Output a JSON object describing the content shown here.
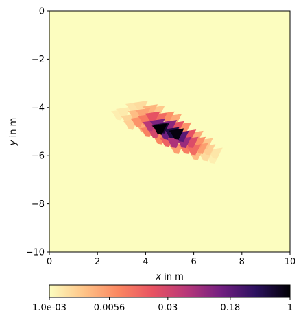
{
  "chart_data": {
    "type": "heatmap",
    "title": "",
    "xlabel": {
      "var": "x",
      "rest": " in m"
    },
    "ylabel": {
      "var": "y",
      "rest": " in m"
    },
    "xlim": [
      0,
      10
    ],
    "ylim": [
      -10,
      0
    ],
    "x_ticks": [
      {
        "v": 0,
        "label": "0"
      },
      {
        "v": 2,
        "label": "2"
      },
      {
        "v": 4,
        "label": "4"
      },
      {
        "v": 6,
        "label": "6"
      },
      {
        "v": 8,
        "label": "8"
      },
      {
        "v": 10,
        "label": "10"
      }
    ],
    "y_ticks": [
      {
        "v": 0,
        "label": "0"
      },
      {
        "v": -2,
        "label": "−2"
      },
      {
        "v": -4,
        "label": "−4"
      },
      {
        "v": -6,
        "label": "−6"
      },
      {
        "v": -8,
        "label": "−8"
      },
      {
        "v": -10,
        "label": "−10"
      }
    ],
    "background_value": 0.001,
    "colormap": "magma_r",
    "colormap_stops": [
      "#fcfdbf",
      "#fec488",
      "#fb8761",
      "#e85362",
      "#b73779",
      "#721f81",
      "#2c115f",
      "#000004"
    ],
    "colorbar": {
      "scale": "log",
      "range": [
        0.001,
        1
      ],
      "ticks": [
        {
          "v": 0.001,
          "label": "1.0e-03"
        },
        {
          "v": 0.0056,
          "label": "0.0056"
        },
        {
          "v": 0.03,
          "label": "0.03"
        },
        {
          "v": 0.18,
          "label": "0.18"
        },
        {
          "v": 1,
          "label": "1"
        }
      ]
    },
    "anomaly": {
      "description_values_log10": "elongated band of triangles oriented from upper-left to lower-right",
      "cells": [
        {
          "x": 3.1,
          "y": -4.2,
          "v": 0.0014
        },
        {
          "x": 3.5,
          "y": -4.0,
          "v": 0.0016
        },
        {
          "x": 3.8,
          "y": -3.95,
          "v": 0.0018
        },
        {
          "x": 3.3,
          "y": -4.5,
          "v": 0.002
        },
        {
          "x": 2.9,
          "y": -4.3,
          "v": 0.0013
        },
        {
          "x": 3.6,
          "y": -4.3,
          "v": 0.003
        },
        {
          "x": 3.9,
          "y": -4.25,
          "v": 0.0045
        },
        {
          "x": 4.2,
          "y": -4.1,
          "v": 0.0035
        },
        {
          "x": 4.5,
          "y": -4.15,
          "v": 0.0025
        },
        {
          "x": 3.4,
          "y": -4.7,
          "v": 0.0022
        },
        {
          "x": 3.7,
          "y": -4.6,
          "v": 0.006
        },
        {
          "x": 4.0,
          "y": -4.5,
          "v": 0.009
        },
        {
          "x": 4.3,
          "y": -4.4,
          "v": 0.02
        },
        {
          "x": 4.6,
          "y": -4.45,
          "v": 0.012
        },
        {
          "x": 4.9,
          "y": -4.4,
          "v": 0.006
        },
        {
          "x": 5.2,
          "y": -4.5,
          "v": 0.004
        },
        {
          "x": 3.9,
          "y": -4.8,
          "v": 0.004
        },
        {
          "x": 4.2,
          "y": -4.75,
          "v": 0.05
        },
        {
          "x": 4.5,
          "y": -4.7,
          "v": 0.12
        },
        {
          "x": 4.7,
          "y": -4.85,
          "v": 0.6
        },
        {
          "x": 4.6,
          "y": -4.9,
          "v": 1.0
        },
        {
          "x": 5.0,
          "y": -4.75,
          "v": 0.1
        },
        {
          "x": 5.3,
          "y": -4.8,
          "v": 0.02
        },
        {
          "x": 5.6,
          "y": -4.85,
          "v": 0.006
        },
        {
          "x": 4.1,
          "y": -5.0,
          "v": 0.008
        },
        {
          "x": 4.4,
          "y": -5.05,
          "v": 0.03
        },
        {
          "x": 4.85,
          "y": -5.1,
          "v": 0.15
        },
        {
          "x": 5.1,
          "y": -5.05,
          "v": 0.5
        },
        {
          "x": 5.3,
          "y": -5.1,
          "v": 0.9
        },
        {
          "x": 5.5,
          "y": -5.2,
          "v": 0.2
        },
        {
          "x": 5.8,
          "y": -5.15,
          "v": 0.02
        },
        {
          "x": 6.1,
          "y": -5.2,
          "v": 0.004
        },
        {
          "x": 4.6,
          "y": -5.3,
          "v": 0.007
        },
        {
          "x": 4.9,
          "y": -5.4,
          "v": 0.015
        },
        {
          "x": 5.2,
          "y": -5.45,
          "v": 0.06
        },
        {
          "x": 5.6,
          "y": -5.45,
          "v": 0.08
        },
        {
          "x": 5.9,
          "y": -5.45,
          "v": 0.025
        },
        {
          "x": 6.2,
          "y": -5.45,
          "v": 0.006
        },
        {
          "x": 6.5,
          "y": -5.5,
          "v": 0.0025
        },
        {
          "x": 5.3,
          "y": -5.7,
          "v": 0.005
        },
        {
          "x": 5.7,
          "y": -5.7,
          "v": 0.009
        },
        {
          "x": 6.0,
          "y": -5.75,
          "v": 0.012
        },
        {
          "x": 6.3,
          "y": -5.7,
          "v": 0.005
        },
        {
          "x": 6.6,
          "y": -5.75,
          "v": 0.0022
        },
        {
          "x": 6.9,
          "y": -5.9,
          "v": 0.0015
        },
        {
          "x": 6.1,
          "y": -5.95,
          "v": 0.003
        },
        {
          "x": 6.5,
          "y": -6.0,
          "v": 0.0018
        },
        {
          "x": 6.8,
          "y": -6.1,
          "v": 0.0013
        }
      ]
    }
  }
}
